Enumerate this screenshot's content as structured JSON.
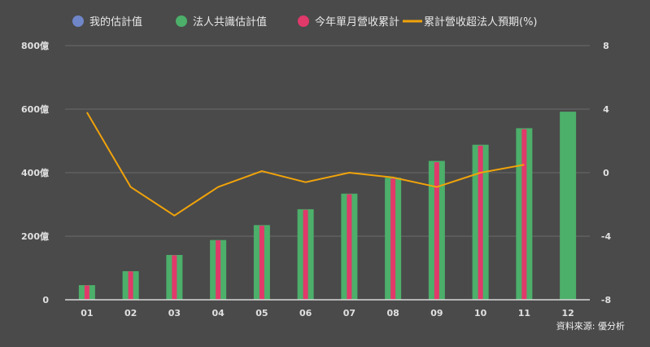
{
  "chart_data": {
    "type": "bar",
    "categories": [
      "01",
      "02",
      "03",
      "04",
      "05",
      "06",
      "07",
      "08",
      "09",
      "10",
      "11",
      "12"
    ],
    "series": [
      {
        "name": "我的估計值",
        "values": [
          null,
          null,
          null,
          null,
          null,
          null,
          null,
          null,
          null,
          null,
          null,
          null
        ],
        "color": "#6f86c9",
        "kind": "bar"
      },
      {
        "name": "法人共識估計值",
        "values": [
          46,
          90,
          141,
          188,
          235,
          285,
          334,
          384,
          437,
          488,
          540,
          592
        ],
        "color": "#4caf6a",
        "kind": "bar"
      },
      {
        "name": "今年單月營收累計",
        "values": [
          45,
          89,
          140,
          187,
          233,
          283,
          332,
          381,
          433,
          485,
          537,
          null
        ],
        "color": "#e0396a",
        "kind": "bar"
      },
      {
        "name": "累計營收超法人預期(%)",
        "values": [
          3.8,
          -0.9,
          -2.7,
          -0.9,
          0.1,
          -0.6,
          0,
          -0.3,
          -0.9,
          0,
          0.5,
          null
        ],
        "color": "#f0a30a",
        "kind": "line",
        "axis": "right"
      }
    ],
    "y_left": {
      "min": 0,
      "max": 800,
      "ticks": [
        "0",
        "200億",
        "400億",
        "600億",
        "800億"
      ]
    },
    "y_right": {
      "min": -8,
      "max": 8,
      "ticks": [
        "-8",
        "-4",
        "0",
        "4",
        "8"
      ]
    },
    "grid": true,
    "legend": "top"
  },
  "source_text": "資料來源: 優分析",
  "colors": {
    "background": "#4a4a4a",
    "grid": "#6b6b6b",
    "axis": "#d8d8d8"
  }
}
